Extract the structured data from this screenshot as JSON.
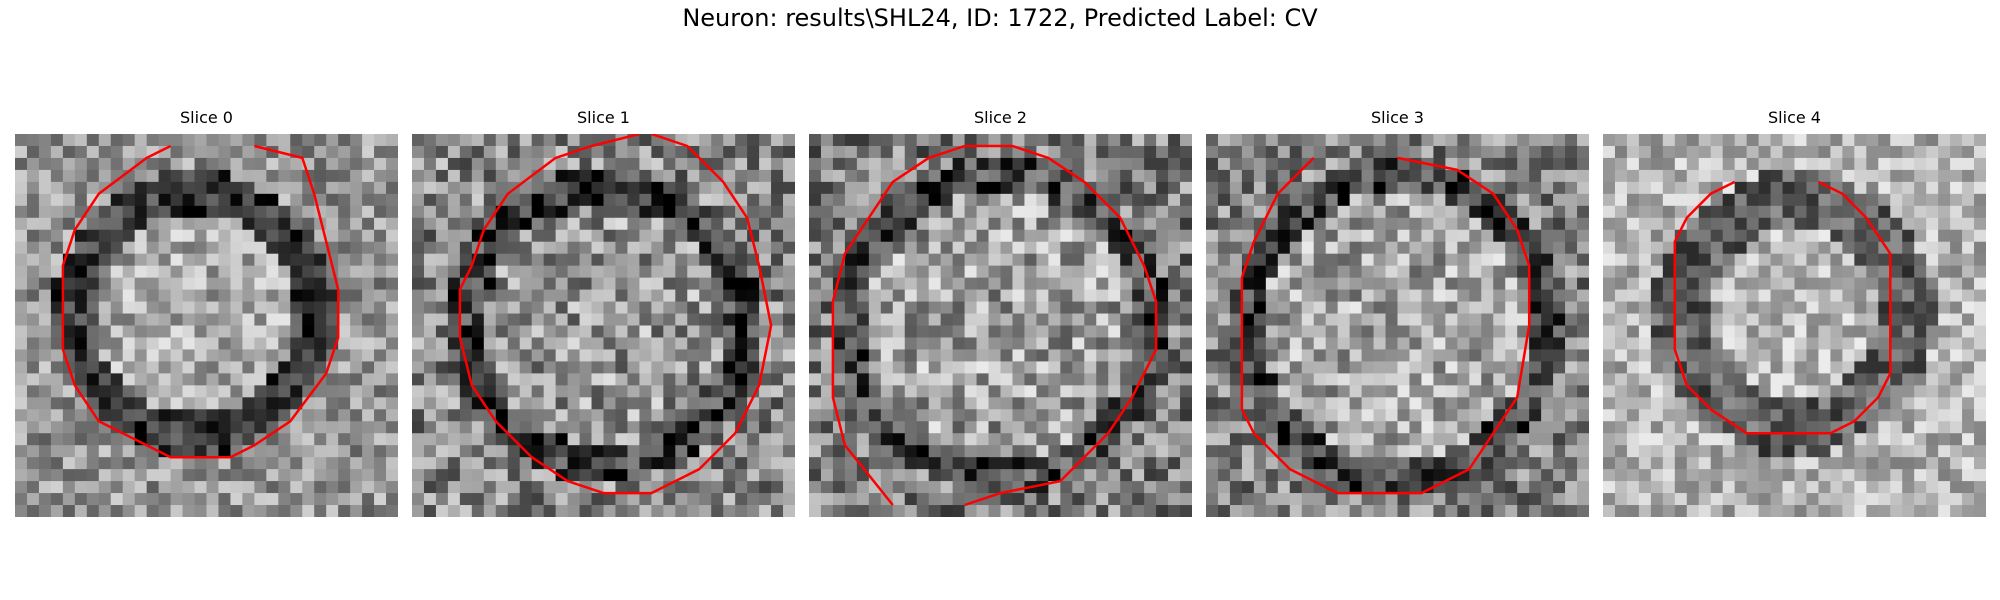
{
  "figure": {
    "title": "Neuron: results\\SHL24, ID: 1722, Predicted Label: CV"
  },
  "panels": [
    {
      "title": "Slice 0",
      "image": "grayscale-microscopy-tile",
      "contour_color": "#ff0000"
    },
    {
      "title": "Slice 1",
      "image": "grayscale-microscopy-tile",
      "contour_color": "#ff0000"
    },
    {
      "title": "Slice 2",
      "image": "grayscale-microscopy-tile",
      "contour_color": "#ff0000"
    },
    {
      "title": "Slice 3",
      "image": "grayscale-microscopy-tile",
      "contour_color": "#ff0000"
    },
    {
      "title": "Slice 4",
      "image": "grayscale-microscopy-tile",
      "contour_color": "#ff0000"
    }
  ]
}
